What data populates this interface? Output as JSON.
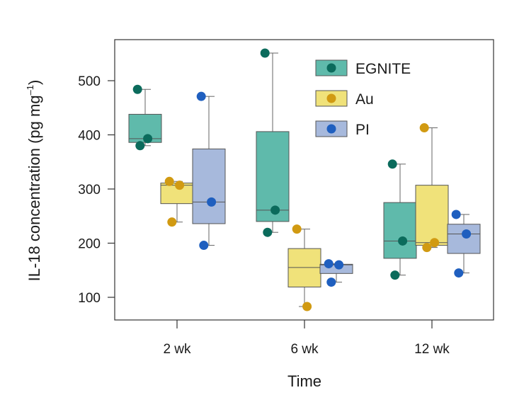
{
  "chart_data": {
    "type": "box",
    "xlabel": "Time",
    "ylabel": {
      "main": "IL-18 concentration (pg mg",
      "sup": "–1",
      "tail": ")"
    },
    "ylim": [
      60,
      575
    ],
    "yticks": [
      100,
      200,
      300,
      400,
      500
    ],
    "categories": [
      "2 wk",
      "6 wk",
      "12 wk"
    ],
    "legend": {
      "position": "top-right"
    },
    "series": [
      {
        "name": "EGNITE",
        "fill": "#5fbaab",
        "point": "#0b6b5c",
        "boxes": [
          {
            "whisker_low": 380,
            "q1": 386,
            "median": 393,
            "q3": 438,
            "whisker_high": 484,
            "points": [
              484,
              393,
              380
            ]
          },
          {
            "whisker_low": 220,
            "q1": 240,
            "median": 261,
            "q3": 406,
            "whisker_high": 551,
            "points": [
              551,
              261,
              220
            ]
          },
          {
            "whisker_low": 141,
            "q1": 172,
            "median": 204,
            "q3": 275,
            "whisker_high": 346,
            "points": [
              346,
              204,
              141
            ]
          }
        ]
      },
      {
        "name": "Au",
        "fill": "#f0e27a",
        "point": "#d19a12",
        "boxes": [
          {
            "whisker_low": 239,
            "q1": 273,
            "median": 307,
            "q3": 311,
            "whisker_high": 314,
            "points": [
              314,
              307,
              239
            ]
          },
          {
            "whisker_low": 83,
            "q1": 119,
            "median": 155,
            "q3": 190,
            "whisker_high": 226,
            "points": [
              226,
              83
            ]
          },
          {
            "whisker_low": 192,
            "q1": 196,
            "median": 201,
            "q3": 307,
            "whisker_high": 413,
            "points": [
              413,
              201,
              192
            ]
          }
        ]
      },
      {
        "name": "PI",
        "fill": "#a7b9dc",
        "point": "#1f5fbf",
        "boxes": [
          {
            "whisker_low": 196,
            "q1": 236,
            "median": 276,
            "q3": 374,
            "whisker_high": 471,
            "points": [
              471,
              276,
              196
            ]
          },
          {
            "whisker_low": 128,
            "q1": 144,
            "median": 160,
            "q3": 161,
            "whisker_high": 162,
            "points": [
              162,
              160,
              128
            ]
          },
          {
            "whisker_low": 145,
            "q1": 181,
            "median": 217,
            "q3": 235,
            "whisker_high": 253,
            "points": [
              253,
              217,
              145
            ]
          }
        ]
      }
    ]
  }
}
